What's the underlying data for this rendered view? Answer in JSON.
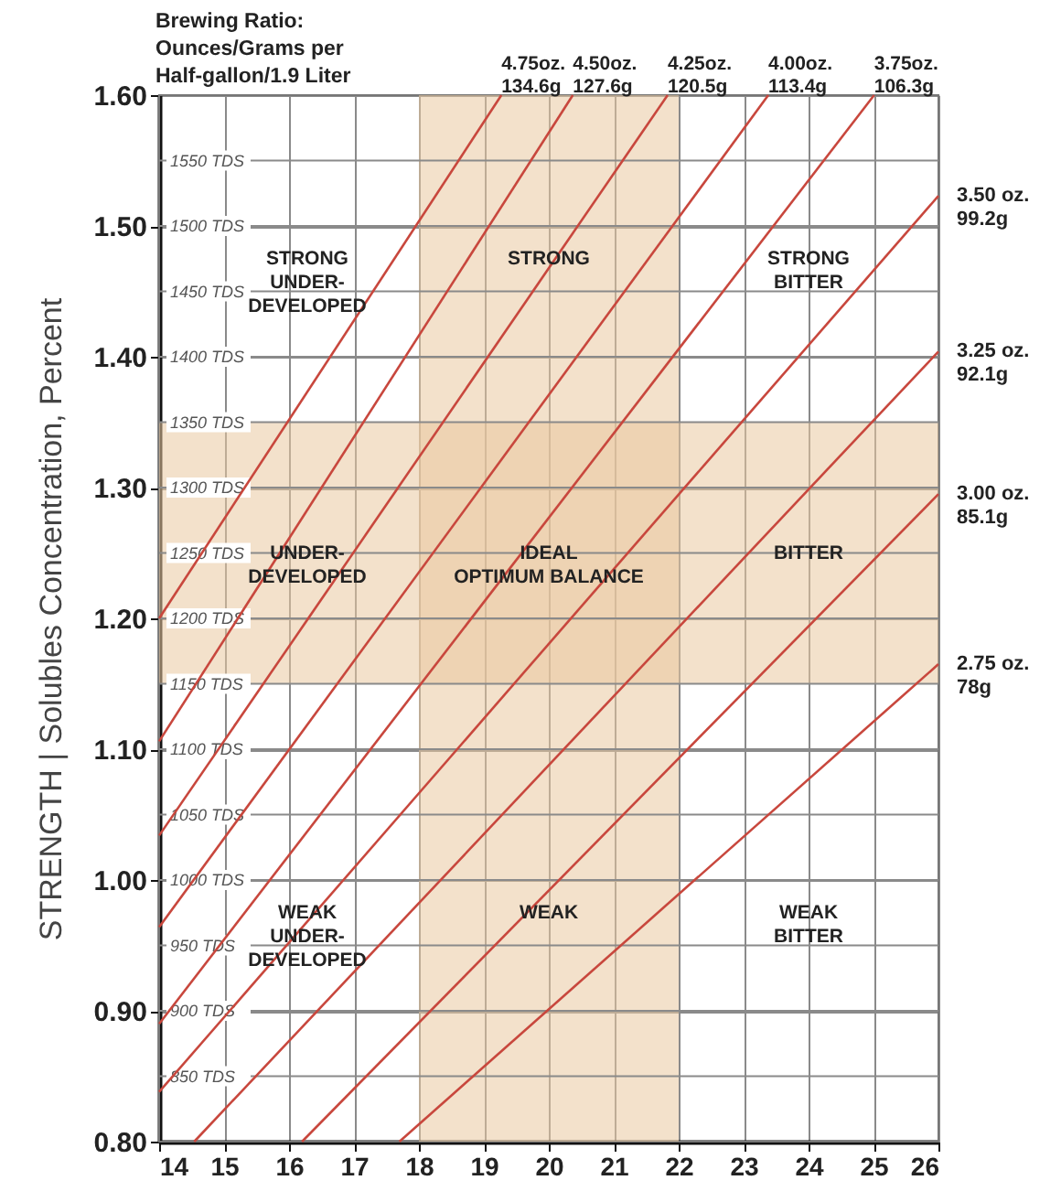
{
  "chart_data": {
    "type": "line",
    "ylabel": "STRENGTH | Solubles Concentration, Percent",
    "xlim": [
      14,
      26
    ],
    "xticks": [
      14,
      15,
      16,
      17,
      18,
      19,
      20,
      21,
      22,
      23,
      24,
      25,
      26
    ],
    "ylim": [
      0.8,
      1.6
    ],
    "yticks": [
      {
        "value": 0.8,
        "label": "0.80"
      },
      {
        "value": 0.9,
        "label": "0.90"
      },
      {
        "value": 1.0,
        "label": "1.00"
      },
      {
        "value": 1.1,
        "label": "1.10"
      },
      {
        "value": 1.2,
        "label": "1.20"
      },
      {
        "value": 1.3,
        "label": "1.30"
      },
      {
        "value": 1.4,
        "label": "1.40"
      },
      {
        "value": 1.5,
        "label": "1.50"
      },
      {
        "value": 1.6,
        "label": "1.60"
      }
    ],
    "y2lim": [
      800,
      1600
    ],
    "y2ticks": [
      {
        "value": 850,
        "label": "850 TDS"
      },
      {
        "value": 900,
        "label": "900 TDS"
      },
      {
        "value": 950,
        "label": "950 TDS"
      },
      {
        "value": 1000,
        "label": "1000 TDS"
      },
      {
        "value": 1050,
        "label": "1050 TDS"
      },
      {
        "value": 1100,
        "label": "1100 TDS"
      },
      {
        "value": 1150,
        "label": "1150 TDS"
      },
      {
        "value": 1200,
        "label": "1200 TDS"
      },
      {
        "value": 1250,
        "label": "1250 TDS"
      },
      {
        "value": 1300,
        "label": "1300 TDS"
      },
      {
        "value": 1350,
        "label": "1350 TDS"
      },
      {
        "value": 1400,
        "label": "1400 TDS"
      },
      {
        "value": 1450,
        "label": "1450 TDS"
      },
      {
        "value": 1500,
        "label": "1500 TDS"
      },
      {
        "value": 1550,
        "label": "1550 TDS"
      }
    ],
    "grid": true,
    "series": [
      {
        "name": "4.75oz.\n134.6g",
        "color": "#c8473d",
        "x": [
          14,
          19.27
        ],
        "values": [
          1.2,
          1.6
        ]
      },
      {
        "name": "4.50oz.\n127.6g",
        "color": "#c8473d",
        "x": [
          14,
          20.37
        ],
        "values": [
          1.106,
          1.6
        ]
      },
      {
        "name": "4.25oz.\n120.5g",
        "color": "#c8473d",
        "x": [
          14,
          21.83
        ],
        "values": [
          1.034,
          1.6
        ]
      },
      {
        "name": "4.00oz.\n113.4g",
        "color": "#c8473d",
        "x": [
          14,
          23.38
        ],
        "values": [
          0.964,
          1.6
        ]
      },
      {
        "name": "3.75oz.\n106.3g",
        "color": "#c8473d",
        "x": [
          14,
          25.01
        ],
        "values": [
          0.89,
          1.6
        ]
      },
      {
        "name": "3.50 oz.\n99.2g",
        "color": "#c8473d",
        "x": [
          14,
          26
        ],
        "values": [
          0.838,
          1.523
        ]
      },
      {
        "name": "3.25 oz.\n92.1g",
        "color": "#c8473d",
        "x": [
          14.54,
          26
        ],
        "values": [
          0.8,
          1.404
        ]
      },
      {
        "name": "3.00 oz.\n85.1g",
        "color": "#c8473d",
        "x": [
          16.2,
          26
        ],
        "values": [
          0.8,
          1.295
        ]
      },
      {
        "name": "2.75 oz.\n78g",
        "color": "#c8473d",
        "x": [
          17.7,
          26
        ],
        "values": [
          0.8,
          1.165
        ]
      }
    ],
    "bands": [
      {
        "axis": "x",
        "from": 18,
        "to": 22,
        "color": "#e9c9a0"
      },
      {
        "axis": "y",
        "from": 1.15,
        "to": 1.35,
        "color": "#e9c9a0"
      }
    ],
    "annotations": [
      "Brewing Ratio:\nOunces/Grams per\nHalf-gallon/1.9 Liter",
      "STRONG\nUNDER-\nDEVELOPED",
      "STRONG",
      "STRONG\nBITTER",
      "UNDER-\nDEVELOPED",
      "IDEAL\nOPTIMUM BALANCE",
      "BITTER",
      "WEAK\nUNDER-\nDEVELOPED",
      "WEAK",
      "WEAK\nBITTER"
    ]
  }
}
